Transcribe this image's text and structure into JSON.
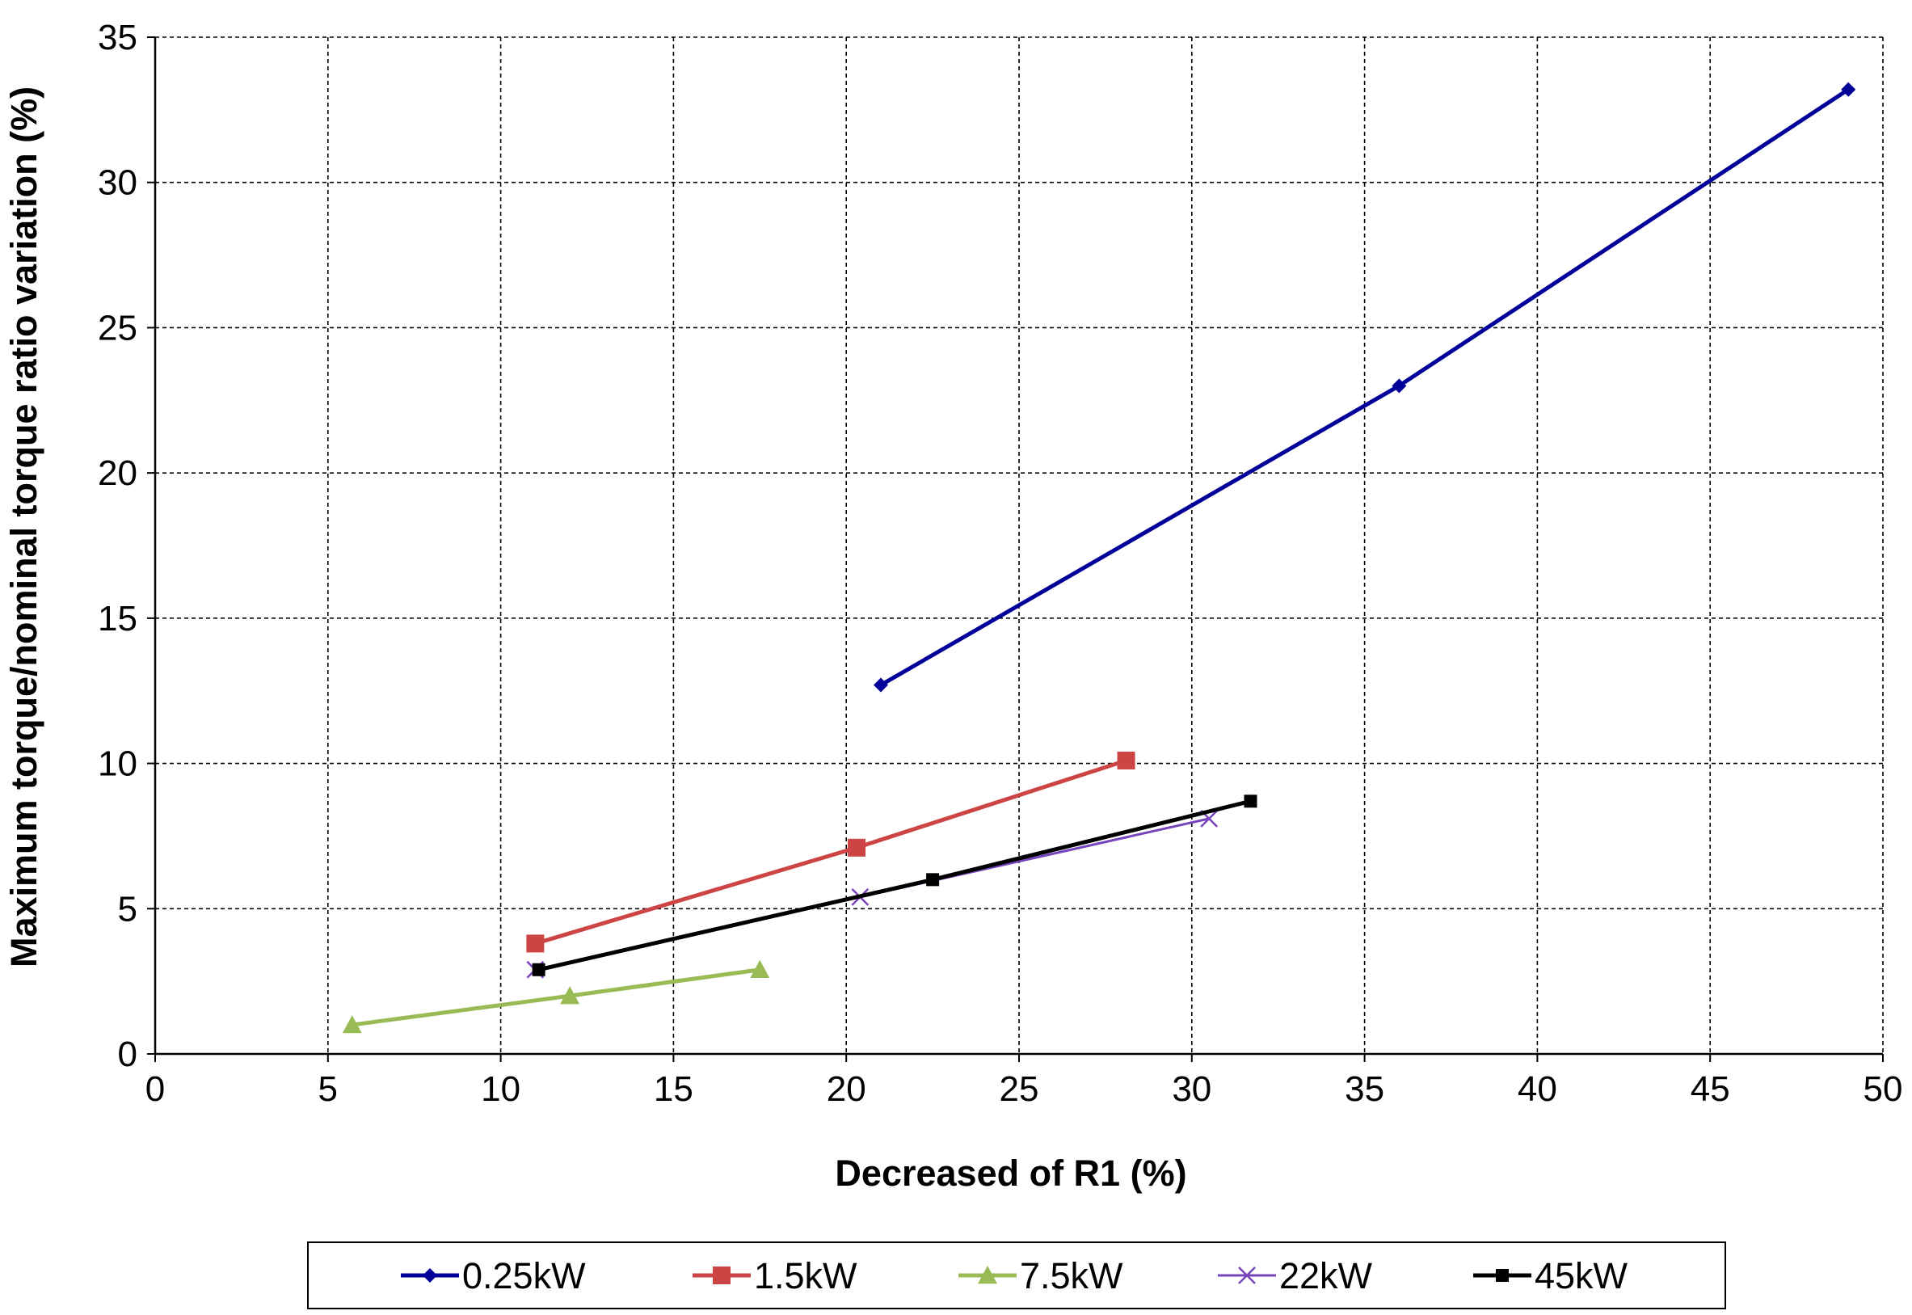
{
  "chart_data": {
    "type": "line",
    "title": "",
    "xlabel": "Decreased of R1 (%)",
    "ylabel": "Maximum torque/nominal torque ratio  variation (%)",
    "xlim": [
      0,
      50
    ],
    "ylim": [
      0,
      35
    ],
    "xticks": [
      0,
      5,
      10,
      15,
      20,
      25,
      30,
      35,
      40,
      45,
      50
    ],
    "yticks": [
      0,
      5,
      10,
      15,
      20,
      25,
      30,
      35
    ],
    "xtick_labels": [
      "0",
      "5",
      "10",
      "15",
      "20",
      "25",
      "30",
      "35",
      "40",
      "45",
      "50"
    ],
    "ytick_labels": [
      "0",
      "5",
      "10",
      "15",
      "20",
      "25",
      "30",
      "35"
    ],
    "grid": true,
    "legend_position": "bottom",
    "series": [
      {
        "name": "0.25kW",
        "color": "#000099",
        "marker": "diamond",
        "x": [
          21.0,
          36.0,
          49.0
        ],
        "y": [
          12.7,
          23.0,
          33.2
        ]
      },
      {
        "name": "1.5kW",
        "color": "#cc4444",
        "marker": "square",
        "x": [
          11.0,
          20.3,
          28.1
        ],
        "y": [
          3.8,
          7.1,
          10.1
        ]
      },
      {
        "name": "7.5kW",
        "color": "#99bb55",
        "marker": "triangle",
        "x": [
          5.7,
          12.0,
          17.5
        ],
        "y": [
          1.0,
          2.0,
          2.9
        ]
      },
      {
        "name": "22kW",
        "color": "#7744bb",
        "marker": "x",
        "x": [
          11.0,
          20.4,
          30.5
        ],
        "y": [
          2.9,
          5.4,
          8.1
        ]
      },
      {
        "name": "45kW",
        "color": "#000000",
        "marker": "small-square",
        "x": [
          11.1,
          22.5,
          31.7
        ],
        "y": [
          2.9,
          6.0,
          8.7
        ]
      }
    ]
  }
}
